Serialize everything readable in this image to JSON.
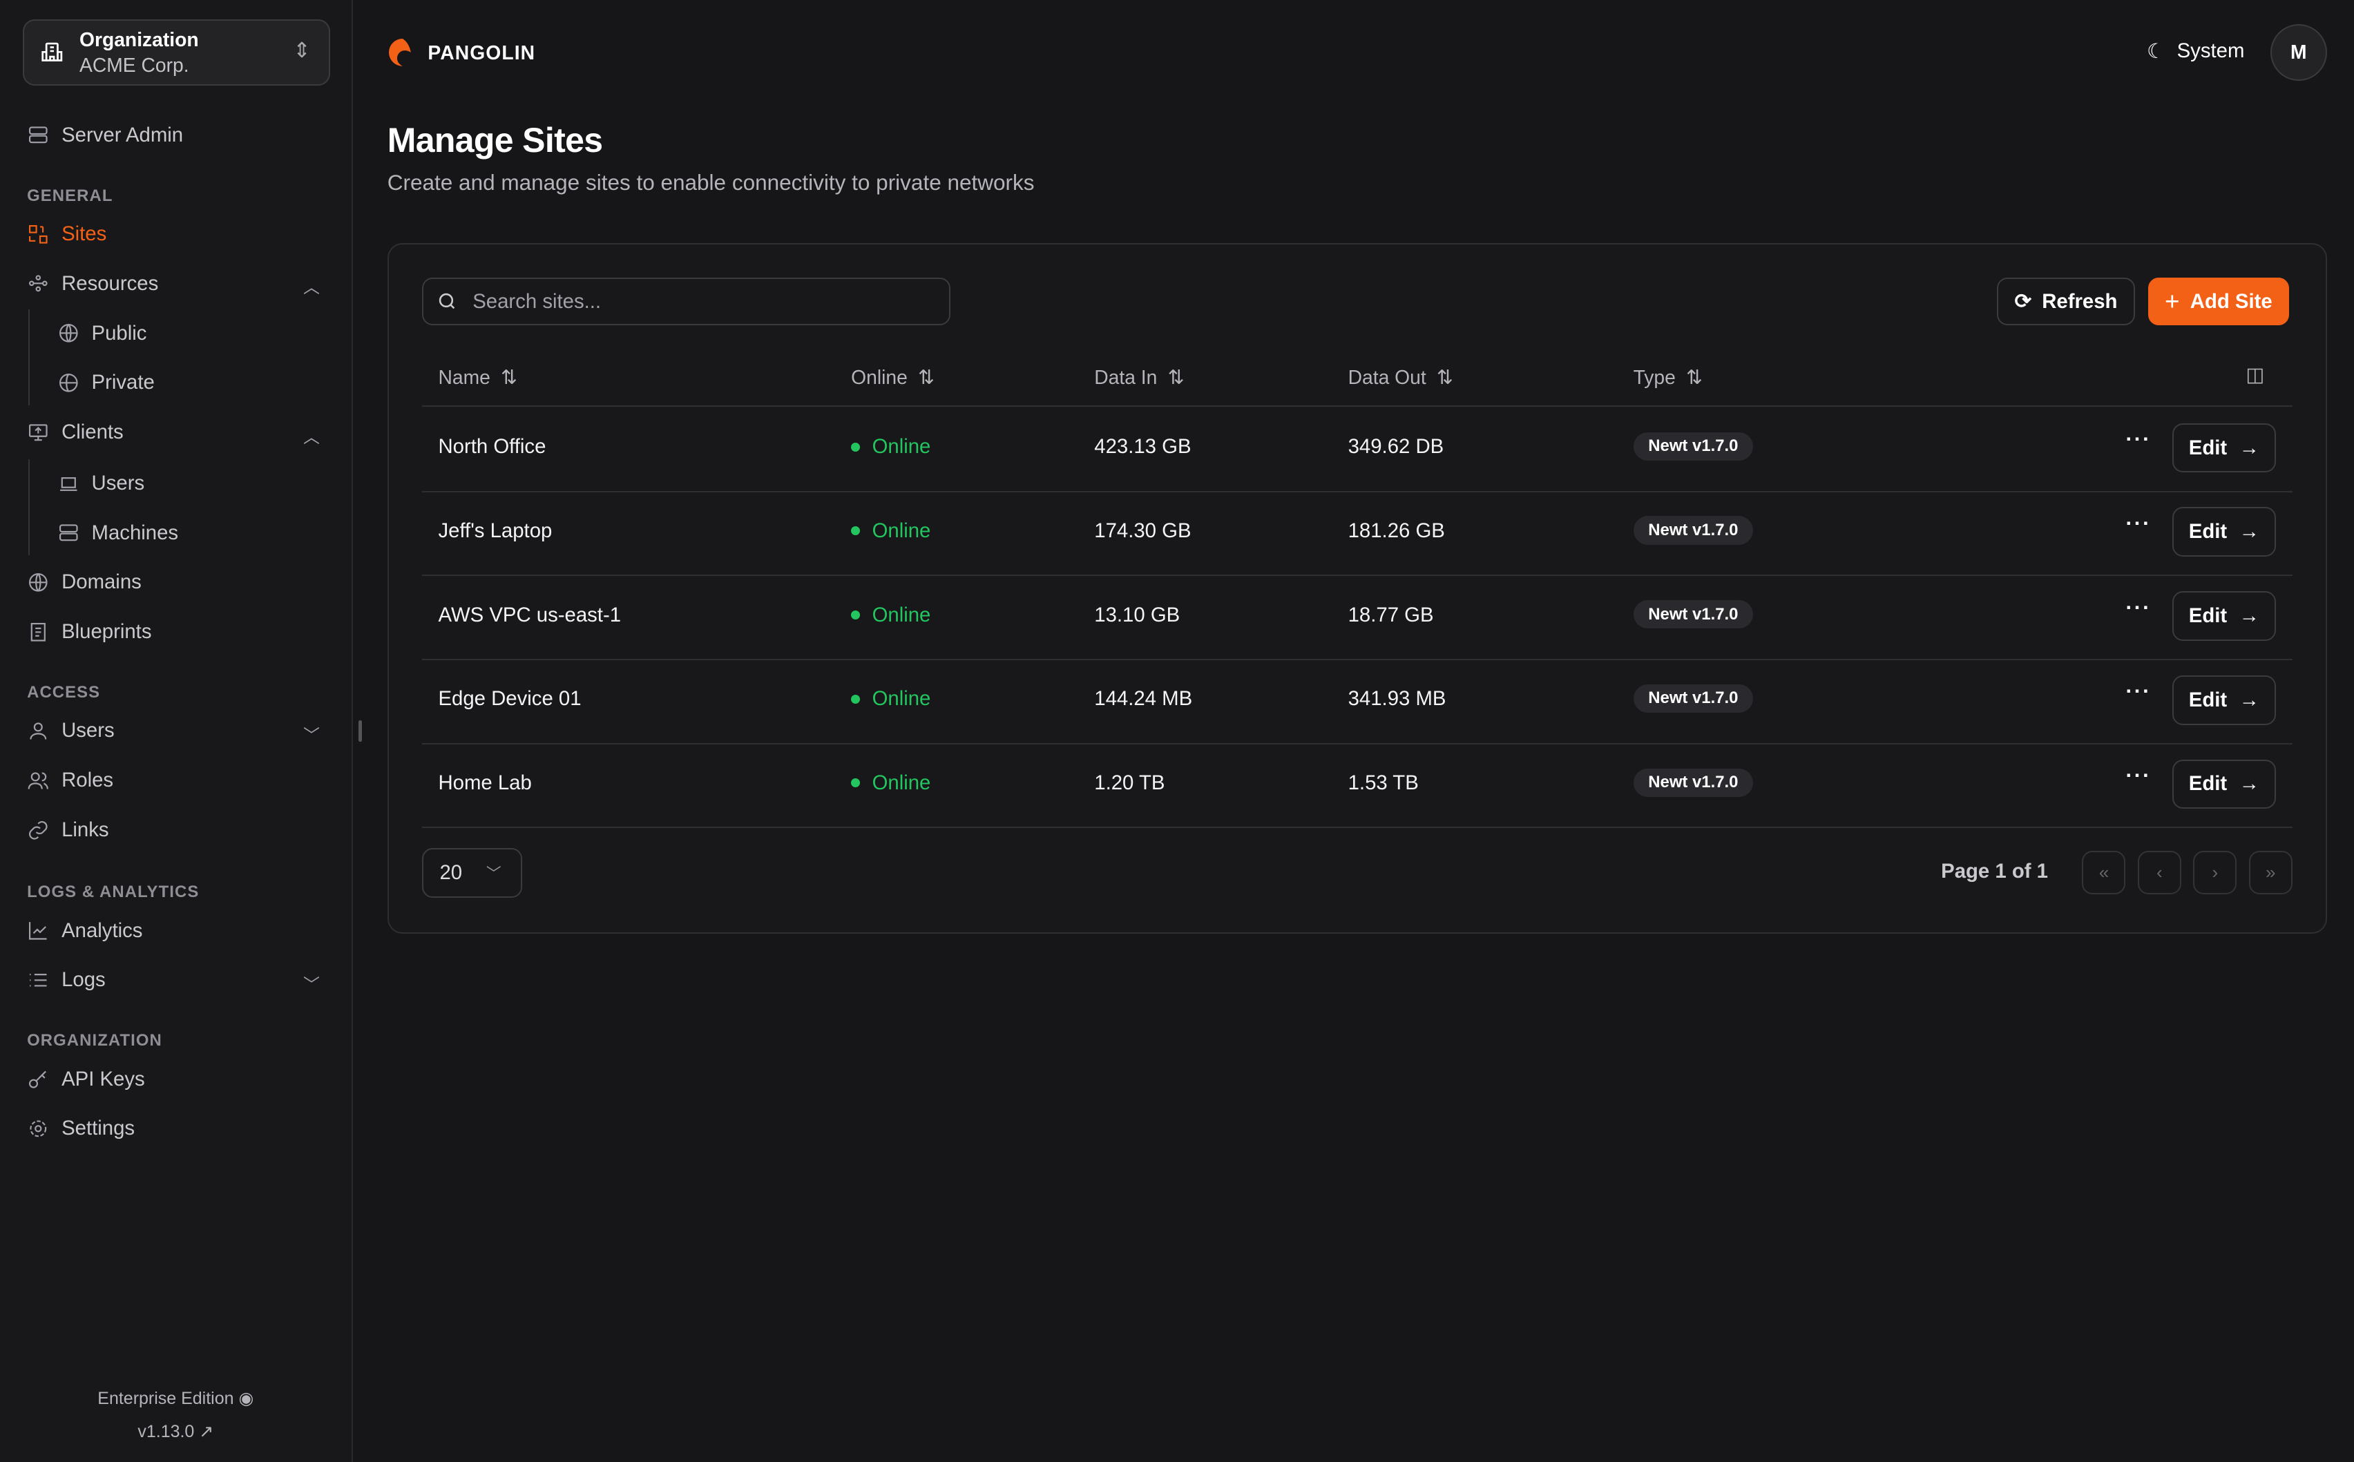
{
  "sidebar": {
    "org_label": "Organization",
    "org_name": "ACME Corp.",
    "server_admin": "Server Admin",
    "sections": {
      "general": "GENERAL",
      "access": "ACCESS",
      "logs": "LOGS & ANALYTICS",
      "organization": "ORGANIZATION"
    },
    "items": {
      "sites": "Sites",
      "resources": "Resources",
      "public": "Public",
      "private": "Private",
      "clients": "Clients",
      "users_client": "Users",
      "machines": "Machines",
      "domains": "Domains",
      "blueprints": "Blueprints",
      "users": "Users",
      "roles": "Roles",
      "links": "Links",
      "analytics": "Analytics",
      "logs": "Logs",
      "api_keys": "API Keys",
      "settings": "Settings"
    },
    "edition": "Enterprise Edition",
    "version": "v1.13.0"
  },
  "header": {
    "brand": "PANGOLIN",
    "theme": "System",
    "avatar": "M",
    "accent": "#f36117"
  },
  "page": {
    "title": "Manage Sites",
    "subtitle": "Create and manage sites to enable connectivity to private networks"
  },
  "toolbar": {
    "search_placeholder": "Search sites...",
    "refresh": "Refresh",
    "add": "Add Site"
  },
  "table": {
    "columns": [
      "Name",
      "Online",
      "Data In",
      "Data Out",
      "Type"
    ],
    "rows": [
      {
        "name": "North Office",
        "online": "Online",
        "data_in": "423.13 GB",
        "data_out": "349.62 DB",
        "type": "Newt v1.7.0"
      },
      {
        "name": "Jeff's Laptop",
        "online": "Online",
        "data_in": "174.30 GB",
        "data_out": "181.26 GB",
        "type": "Newt v1.7.0"
      },
      {
        "name": "AWS VPC us-east-1",
        "online": "Online",
        "data_in": "13.10 GB",
        "data_out": "18.77 GB",
        "type": "Newt v1.7.0"
      },
      {
        "name": "Edge Device 01",
        "online": "Online",
        "data_in": "144.24 MB",
        "data_out": "341.93 MB",
        "type": "Newt v1.7.0"
      },
      {
        "name": "Home Lab",
        "online": "Online",
        "data_in": "1.20 TB",
        "data_out": "1.53 TB",
        "type": "Newt v1.7.0"
      }
    ],
    "edit": "Edit"
  },
  "pagination": {
    "page_size": "20",
    "page_info": "Page 1 of 1"
  }
}
